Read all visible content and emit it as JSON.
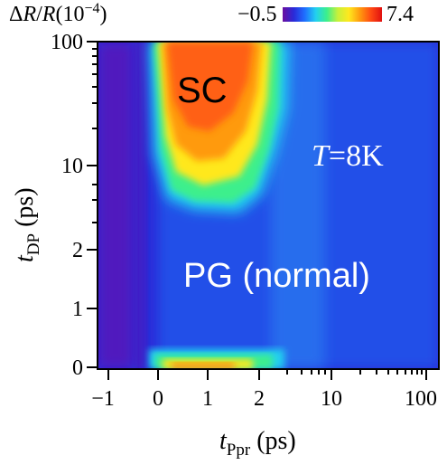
{
  "chart_data": {
    "type": "heatmap",
    "colorbar": {
      "label_delta": "Δ",
      "label_R": "R",
      "label_slash": "/",
      "label_R2": "R",
      "label_scale": "(10",
      "label_exp": "−4",
      "label_close": ")",
      "min_label": "−0.5",
      "max_label": "7.4",
      "min": -0.5,
      "max": 7.4
    },
    "xlabel": {
      "main": "t",
      "sub": "Ppr",
      "unit": " (ps)"
    },
    "ylabel": {
      "main": "t",
      "sub": "DP",
      "unit": " (ps)"
    },
    "x_ticks": [
      "−1",
      "0",
      "1",
      "2",
      "10",
      "100"
    ],
    "y_ticks": [
      "0",
      "1",
      "2",
      "10",
      "100"
    ],
    "annotations": {
      "sc": "SC",
      "temperature_T": "T",
      "temperature_value": "=8K",
      "pg": "PG (normal)"
    },
    "regions": [
      {
        "name": "SC",
        "x_range_ps": [
          0.2,
          3
        ],
        "y_range_ps": [
          5,
          100
        ],
        "peak_value": 7.4
      },
      {
        "name": "low-delay band",
        "x_range_ps": [
          0,
          3
        ],
        "y_range_ps": [
          0,
          0.2
        ],
        "peak_value": 6
      },
      {
        "name": "PG (normal)",
        "x_range_ps": [
          -1,
          100
        ],
        "y_range_ps": [
          0,
          100
        ],
        "value": 0.5
      }
    ],
    "colormap": [
      "#6a0fa0",
      "#2a2ad8",
      "#1f6fff",
      "#22d0f0",
      "#3cef8c",
      "#c8f03a",
      "#ffe81e",
      "#ff9a0e",
      "#ff4a12",
      "#e01010"
    ]
  }
}
